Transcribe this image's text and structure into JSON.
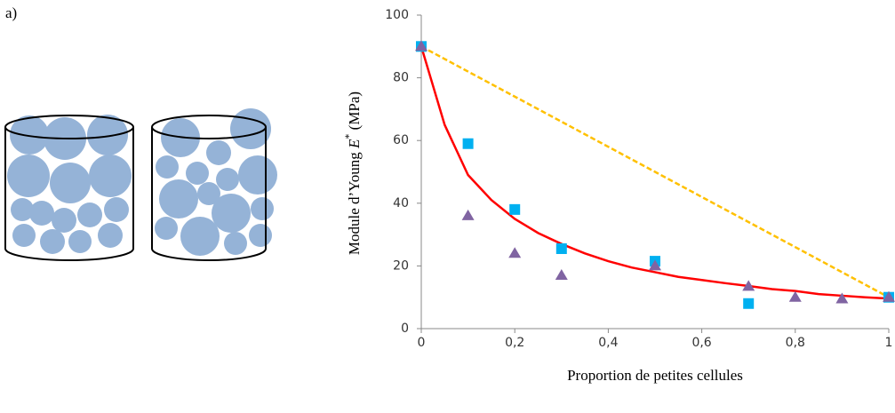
{
  "panel_label": "a)",
  "chart_data": {
    "type": "scatter",
    "x_label": "Proportion de petites cellules",
    "y_label": {
      "prefix": "Module d’Young ",
      "symbol": "E",
      "superscript": "*",
      "unit": " (MPa)"
    },
    "xlim": [
      0,
      1
    ],
    "ylim": [
      0,
      100
    ],
    "xticks": [
      0,
      {
        "value": 0.2,
        "label": "0,2"
      },
      {
        "value": 0.4,
        "label": "0,4"
      },
      {
        "value": 0.6,
        "label": "0,6"
      },
      {
        "value": 0.8,
        "label": "0,8"
      },
      1
    ],
    "yticks": [
      0,
      20,
      40,
      60,
      80,
      100
    ],
    "grid": false,
    "series": [
      {
        "mode": "line",
        "dash": true,
        "color": "#ffc000",
        "x": [
          0,
          1
        ],
        "values": [
          90,
          10
        ]
      },
      {
        "mode": "line",
        "dash": false,
        "color": "#ff0000",
        "x": [
          0,
          0.05,
          0.1,
          0.15,
          0.2,
          0.25,
          0.3,
          0.35,
          0.4,
          0.45,
          0.5,
          0.55,
          0.6,
          0.65,
          0.7,
          0.75,
          0.8,
          0.85,
          0.9,
          0.95,
          1
        ],
        "values": [
          90,
          65,
          49,
          41,
          35,
          30.5,
          27,
          24,
          21.5,
          19.5,
          18,
          16.5,
          15.5,
          14.5,
          13.6,
          12.6,
          12,
          11,
          10.5,
          10,
          9.6
        ]
      },
      {
        "mode": "markers",
        "marker": "square",
        "color": "#00b0f0",
        "x": [
          0,
          0.1,
          0.2,
          0.3,
          0.5,
          0.7,
          1
        ],
        "values": [
          90,
          59,
          38,
          25.5,
          21.5,
          8,
          10
        ]
      },
      {
        "mode": "markers",
        "marker": "triangle",
        "color": "#8064a2",
        "x": [
          0,
          0.1,
          0.2,
          0.3,
          0.5,
          0.7,
          0.8,
          0.9,
          1
        ],
        "values": [
          90,
          36,
          24,
          17,
          20,
          13.5,
          10,
          9.5,
          10
        ]
      }
    ]
  }
}
